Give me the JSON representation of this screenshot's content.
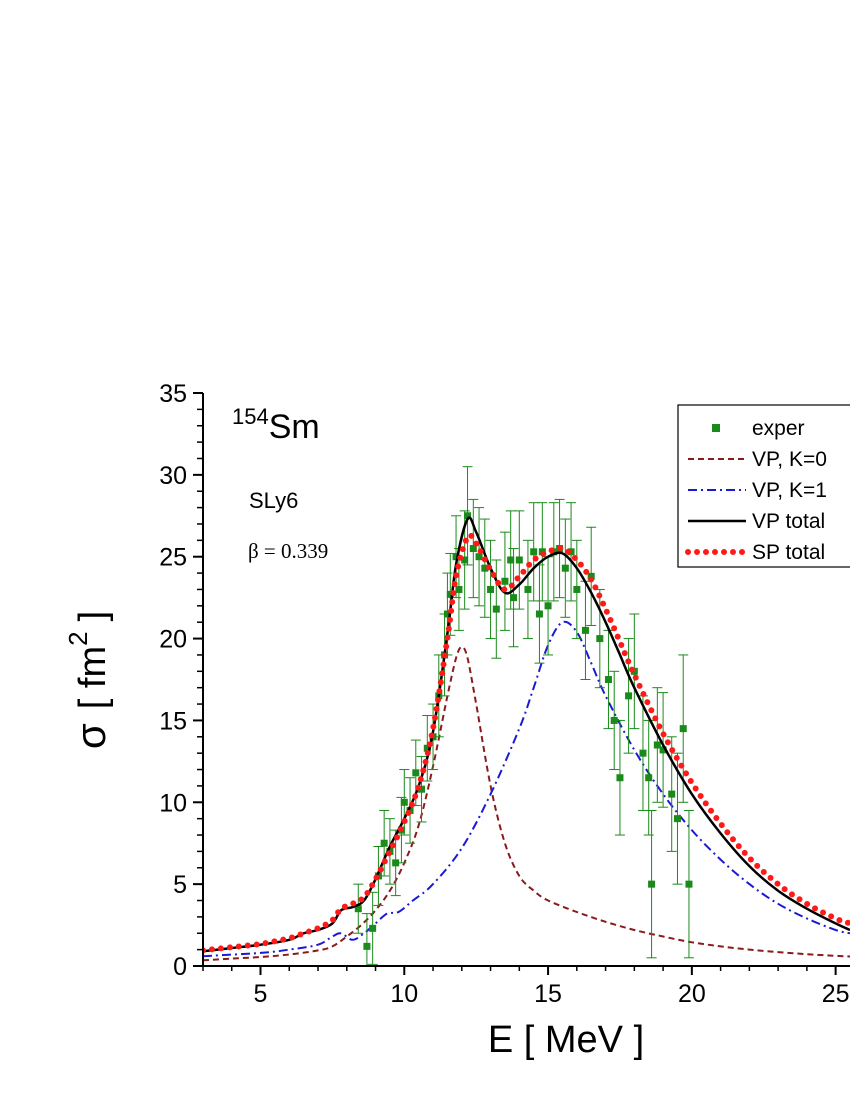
{
  "chart_data": {
    "type": "line",
    "xlabel": "E [ MeV ]",
    "ylabel_symbol": "σ",
    "ylabel_units": "[ fm",
    "ylabel_exp": "2",
    "ylabel_close": "]",
    "xlim": [
      3,
      25.5
    ],
    "ylim": [
      0,
      35
    ],
    "x_ticks": [
      5,
      10,
      15,
      20,
      25
    ],
    "x_tick_labels": [
      "5",
      "10",
      "15",
      "20",
      "25"
    ],
    "y_ticks": [
      0,
      5,
      10,
      15,
      20,
      25,
      30,
      35
    ],
    "y_tick_labels": [
      "0",
      "5",
      "10",
      "15",
      "20",
      "25",
      "30",
      "35"
    ],
    "annotations": {
      "nucleus_mass": "154",
      "nucleus_symbol": "Sm",
      "force": "SLy6",
      "beta": "β = 0.339"
    },
    "legend_position": "top-right",
    "series": [
      {
        "name": "exper",
        "style": "markers",
        "color": "#1a8a1a",
        "points": [
          [
            8.4,
            3.5,
            1.5
          ],
          [
            8.7,
            1.2,
            2.0
          ],
          [
            8.9,
            2.3,
            2.2
          ],
          [
            9.1,
            5.5,
            1.8
          ],
          [
            9.3,
            7.5,
            2.0
          ],
          [
            9.5,
            7.0,
            2.0
          ],
          [
            9.7,
            6.3,
            2.0
          ],
          [
            9.9,
            8.3,
            2.0
          ],
          [
            10.0,
            10.0,
            2.0
          ],
          [
            10.2,
            9.5,
            2.0
          ],
          [
            10.4,
            11.8,
            2.0
          ],
          [
            10.6,
            10.8,
            2.0
          ],
          [
            10.8,
            13.3,
            2.0
          ],
          [
            11.0,
            14.0,
            2.0
          ],
          [
            11.2,
            16.5,
            2.5
          ],
          [
            11.4,
            19.0,
            2.5
          ],
          [
            11.5,
            21.5,
            2.5
          ],
          [
            11.6,
            22.7,
            2.5
          ],
          [
            11.8,
            25.0,
            2.5
          ],
          [
            11.9,
            23.0,
            2.5
          ],
          [
            12.1,
            24.8,
            3.0
          ],
          [
            12.2,
            27.5,
            3.0
          ],
          [
            12.4,
            25.5,
            3.0
          ],
          [
            12.6,
            25.0,
            3.0
          ],
          [
            12.8,
            24.3,
            3.0
          ],
          [
            13.0,
            23.0,
            3.0
          ],
          [
            13.2,
            21.8,
            3.0
          ],
          [
            13.5,
            23.5,
            3.0
          ],
          [
            13.7,
            24.8,
            3.0
          ],
          [
            13.8,
            22.5,
            3.0
          ],
          [
            14.0,
            24.8,
            3.0
          ],
          [
            14.3,
            23.0,
            3.0
          ],
          [
            14.5,
            25.3,
            3.0
          ],
          [
            14.7,
            21.5,
            3.0
          ],
          [
            14.8,
            25.3,
            3.0
          ],
          [
            15.0,
            22.0,
            3.0
          ],
          [
            15.2,
            25.3,
            3.0
          ],
          [
            15.4,
            25.5,
            3.0
          ],
          [
            15.6,
            24.3,
            3.0
          ],
          [
            15.8,
            25.3,
            3.0
          ],
          [
            16.0,
            23.0,
            3.0
          ],
          [
            16.3,
            20.5,
            3.0
          ],
          [
            16.5,
            23.8,
            3.0
          ],
          [
            16.8,
            20.0,
            3.0
          ],
          [
            17.1,
            17.5,
            3.0
          ],
          [
            17.3,
            15.0,
            3.0
          ],
          [
            17.5,
            11.5,
            3.5
          ],
          [
            17.8,
            16.5,
            3.5
          ],
          [
            18.0,
            18.0,
            3.5
          ],
          [
            18.3,
            13.0,
            3.5
          ],
          [
            18.5,
            11.5,
            3.5
          ],
          [
            18.6,
            5.0,
            4.5
          ],
          [
            18.8,
            13.5,
            3.5
          ],
          [
            19.0,
            13.2,
            3.5
          ],
          [
            19.3,
            10.5,
            3.5
          ],
          [
            19.5,
            9.0,
            4.0
          ],
          [
            19.7,
            14.5,
            4.5
          ],
          [
            19.9,
            5.0,
            4.5
          ]
        ]
      },
      {
        "name": "VP, K=0",
        "style": "dashed",
        "color": "#8b1a1a",
        "points": [
          [
            3,
            0.35
          ],
          [
            4,
            0.45
          ],
          [
            5,
            0.55
          ],
          [
            6,
            0.7
          ],
          [
            7,
            0.95
          ],
          [
            7.5,
            1.2
          ],
          [
            8,
            1.8
          ],
          [
            8.5,
            2.5
          ],
          [
            9,
            3.4
          ],
          [
            9.5,
            4.6
          ],
          [
            10,
            6.3
          ],
          [
            10.5,
            8.6
          ],
          [
            11,
            12.2
          ],
          [
            11.5,
            16.5
          ],
          [
            11.8,
            18.8
          ],
          [
            12,
            19.5
          ],
          [
            12.2,
            18.8
          ],
          [
            12.5,
            16.0
          ],
          [
            13,
            11.0
          ],
          [
            13.5,
            7.5
          ],
          [
            14,
            5.5
          ],
          [
            14.5,
            4.6
          ],
          [
            15,
            4.0
          ],
          [
            16,
            3.3
          ],
          [
            17,
            2.7
          ],
          [
            18,
            2.2
          ],
          [
            19,
            1.8
          ],
          [
            20,
            1.45
          ],
          [
            21,
            1.2
          ],
          [
            22,
            1.0
          ],
          [
            23,
            0.85
          ],
          [
            24,
            0.72
          ],
          [
            25,
            0.62
          ],
          [
            25.5,
            0.58
          ]
        ]
      },
      {
        "name": "VP, K=1",
        "style": "dashdot",
        "color": "#1a1ad4",
        "points": [
          [
            3,
            0.6
          ],
          [
            5,
            0.8
          ],
          [
            6,
            1.0
          ],
          [
            7,
            1.3
          ],
          [
            7.5,
            1.8
          ],
          [
            7.8,
            2.0
          ],
          [
            8.2,
            1.6
          ],
          [
            8.6,
            2.0
          ],
          [
            9,
            2.6
          ],
          [
            9.4,
            3.2
          ],
          [
            9.8,
            3.3
          ],
          [
            10.3,
            4.0
          ],
          [
            11,
            5.0
          ],
          [
            12,
            7.2
          ],
          [
            13,
            10.5
          ],
          [
            14,
            14.5
          ],
          [
            14.5,
            17.0
          ],
          [
            15,
            19.6
          ],
          [
            15.5,
            21.0
          ],
          [
            16,
            20.4
          ],
          [
            16.5,
            18.5
          ],
          [
            17,
            16.5
          ],
          [
            18,
            13.2
          ],
          [
            19,
            10.5
          ],
          [
            20,
            8.3
          ],
          [
            21,
            6.5
          ],
          [
            22,
            5.0
          ],
          [
            23,
            3.8
          ],
          [
            24,
            2.9
          ],
          [
            25,
            2.2
          ],
          [
            25.5,
            2.0
          ]
        ]
      },
      {
        "name": "VP total",
        "style": "solid",
        "color": "#000000",
        "points": [
          [
            3,
            0.9
          ],
          [
            4,
            1.1
          ],
          [
            5,
            1.3
          ],
          [
            6,
            1.6
          ],
          [
            6.5,
            2.0
          ],
          [
            7,
            2.2
          ],
          [
            7.5,
            2.6
          ],
          [
            7.8,
            3.4
          ],
          [
            8.2,
            3.6
          ],
          [
            8.6,
            4.0
          ],
          [
            9,
            5.3
          ],
          [
            9.5,
            7.3
          ],
          [
            10,
            9.0
          ],
          [
            10.5,
            11.0
          ],
          [
            11,
            14.3
          ],
          [
            11.5,
            20.3
          ],
          [
            11.8,
            24.5
          ],
          [
            12.2,
            27.3
          ],
          [
            12.5,
            26.5
          ],
          [
            13,
            24.3
          ],
          [
            13.5,
            22.8
          ],
          [
            14,
            23.3
          ],
          [
            14.5,
            24.3
          ],
          [
            15,
            25.0
          ],
          [
            15.5,
            25.2
          ],
          [
            16,
            24.3
          ],
          [
            16.5,
            22.8
          ],
          [
            17,
            21.0
          ],
          [
            17.5,
            19.0
          ],
          [
            18,
            17.0
          ],
          [
            19,
            13.5
          ],
          [
            20,
            10.5
          ],
          [
            21,
            8.1
          ],
          [
            22,
            6.1
          ],
          [
            23,
            4.6
          ],
          [
            24,
            3.5
          ],
          [
            25,
            2.6
          ],
          [
            25.5,
            2.2
          ]
        ]
      },
      {
        "name": "SP total",
        "style": "dotted",
        "color": "#ff1a1a",
        "points": [
          [
            3,
            0.95
          ],
          [
            4,
            1.15
          ],
          [
            5,
            1.35
          ],
          [
            6,
            1.7
          ],
          [
            6.5,
            2.0
          ],
          [
            7,
            2.3
          ],
          [
            7.5,
            2.8
          ],
          [
            7.8,
            3.5
          ],
          [
            8.2,
            3.8
          ],
          [
            8.6,
            4.2
          ],
          [
            9,
            5.3
          ],
          [
            9.5,
            7.0
          ],
          [
            10,
            8.8
          ],
          [
            10.5,
            11.0
          ],
          [
            11,
            14.5
          ],
          [
            11.5,
            20.0
          ],
          [
            11.8,
            23.8
          ],
          [
            12.2,
            26.2
          ],
          [
            12.5,
            25.8
          ],
          [
            13,
            24.2
          ],
          [
            13.5,
            23.0
          ],
          [
            14,
            23.8
          ],
          [
            14.5,
            24.8
          ],
          [
            15,
            25.3
          ],
          [
            15.5,
            25.5
          ],
          [
            16,
            24.8
          ],
          [
            16.5,
            23.6
          ],
          [
            17,
            21.8
          ],
          [
            17.5,
            19.8
          ],
          [
            18,
            17.8
          ],
          [
            19,
            14.2
          ],
          [
            20,
            11.2
          ],
          [
            21,
            8.7
          ],
          [
            22,
            6.6
          ],
          [
            23,
            5.0
          ],
          [
            24,
            3.8
          ],
          [
            25,
            2.9
          ],
          [
            25.5,
            2.6
          ]
        ]
      }
    ]
  }
}
